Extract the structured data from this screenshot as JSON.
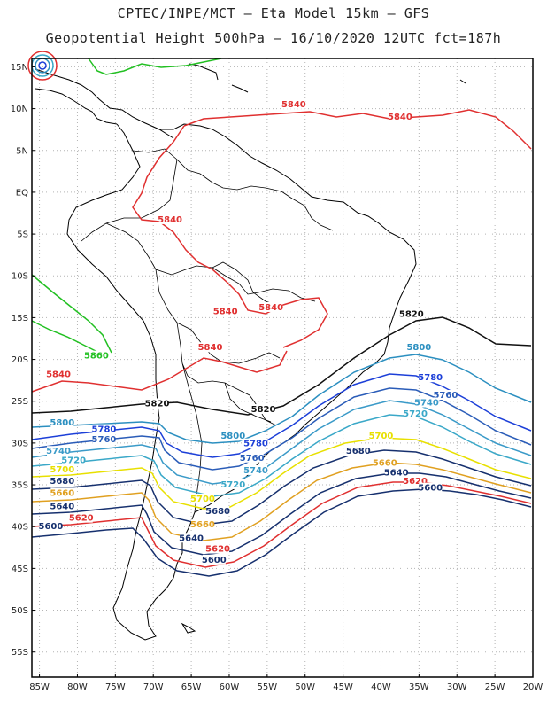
{
  "header": {
    "line1": "CPTEC/INPE/MCT –  Eta Model 15km – GFS",
    "line2": "Geopotential Height 500hPa – 16/10/2020 12UTC fct=187h"
  },
  "map": {
    "extent": {
      "lon": [
        -86,
        -20
      ],
      "lat": [
        -58,
        16
      ]
    },
    "lat_ticks": [
      "15N",
      "10N",
      "5N",
      "EQ",
      "5S",
      "10S",
      "15S",
      "20S",
      "25S",
      "30S",
      "35S",
      "40S",
      "45S",
      "50S",
      "55S"
    ],
    "lon_ticks": [
      "85W",
      "80W",
      "75W",
      "70W",
      "65W",
      "60W",
      "55W",
      "50W",
      "45W",
      "40W",
      "35W",
      "30W",
      "25W",
      "20W"
    ],
    "contour_labels": [
      {
        "text": "5840",
        "color": "#e03030",
        "lon": -51.5,
        "lat": 10.3
      },
      {
        "text": "5840",
        "color": "#e03030",
        "lon": -37.5,
        "lat": 8.8
      },
      {
        "text": "5840",
        "color": "#e03030",
        "lon": -67.8,
        "lat": -3.5
      },
      {
        "text": "5840",
        "color": "#e03030",
        "lon": -60.5,
        "lat": -14.5
      },
      {
        "text": "5840",
        "color": "#e03030",
        "lon": -54.5,
        "lat": -14.0
      },
      {
        "text": "5840",
        "color": "#e03030",
        "lon": -62.5,
        "lat": -18.8
      },
      {
        "text": "5840",
        "color": "#e03030",
        "lon": -82.5,
        "lat": -22.0
      },
      {
        "text": "5860",
        "color": "#22c022",
        "lon": -77.5,
        "lat": -19.8
      },
      {
        "text": "5820",
        "color": "#111111",
        "lon": -69.5,
        "lat": -25.5
      },
      {
        "text": "5820",
        "color": "#111111",
        "lon": -55.5,
        "lat": -26.2
      },
      {
        "text": "5820",
        "color": "#111111",
        "lon": -36.0,
        "lat": -14.8
      },
      {
        "text": "5800",
        "color": "#2b8fc0",
        "lon": -82.0,
        "lat": -27.8
      },
      {
        "text": "5800",
        "color": "#2b8fc0",
        "lon": -59.5,
        "lat": -29.4
      },
      {
        "text": "5800",
        "color": "#2b8fc0",
        "lon": -35.0,
        "lat": -18.8
      },
      {
        "text": "5780",
        "color": "#1c3fd8",
        "lon": -76.5,
        "lat": -28.6
      },
      {
        "text": "5780",
        "color": "#1c3fd8",
        "lon": -56.5,
        "lat": -30.3
      },
      {
        "text": "5780",
        "color": "#1c3fd8",
        "lon": -33.5,
        "lat": -22.4
      },
      {
        "text": "5760",
        "color": "#2a5cb8",
        "lon": -76.5,
        "lat": -29.8
      },
      {
        "text": "5760",
        "color": "#2a5cb8",
        "lon": -57.0,
        "lat": -32.0
      },
      {
        "text": "5760",
        "color": "#2a5cb8",
        "lon": -31.5,
        "lat": -24.5
      },
      {
        "text": "5740",
        "color": "#3a9ac8",
        "lon": -82.5,
        "lat": -31.2
      },
      {
        "text": "5740",
        "color": "#3a9ac8",
        "lon": -56.5,
        "lat": -33.5
      },
      {
        "text": "5740",
        "color": "#3a9ac8",
        "lon": -34.0,
        "lat": -25.4
      },
      {
        "text": "5720",
        "color": "#3aa8c8",
        "lon": -80.5,
        "lat": -32.3
      },
      {
        "text": "5720",
        "color": "#3aa8c8",
        "lon": -59.5,
        "lat": -35.2
      },
      {
        "text": "5720",
        "color": "#3aa8c8",
        "lon": -35.5,
        "lat": -26.7
      },
      {
        "text": "5700",
        "color": "#e8e000",
        "lon": -82.0,
        "lat": -33.4
      },
      {
        "text": "5700",
        "color": "#e8e000",
        "lon": -63.5,
        "lat": -36.9
      },
      {
        "text": "5700",
        "color": "#e8e000",
        "lon": -40.0,
        "lat": -29.4
      },
      {
        "text": "5680",
        "color": "#16306e",
        "lon": -82.0,
        "lat": -34.8
      },
      {
        "text": "5680",
        "color": "#16306e",
        "lon": -61.5,
        "lat": -38.4
      },
      {
        "text": "5680",
        "color": "#16306e",
        "lon": -43.0,
        "lat": -31.2
      },
      {
        "text": "5660",
        "color": "#e0a020",
        "lon": -82.0,
        "lat": -36.2
      },
      {
        "text": "5660",
        "color": "#e0a020",
        "lon": -63.5,
        "lat": -40.0
      },
      {
        "text": "5660",
        "color": "#e0a020",
        "lon": -39.5,
        "lat": -32.6
      },
      {
        "text": "5640",
        "color": "#16306e",
        "lon": -82.0,
        "lat": -37.8
      },
      {
        "text": "5640",
        "color": "#16306e",
        "lon": -65.0,
        "lat": -41.6
      },
      {
        "text": "5640",
        "color": "#16306e",
        "lon": -38.0,
        "lat": -33.8
      },
      {
        "text": "5620",
        "color": "#e03030",
        "lon": -79.5,
        "lat": -39.2
      },
      {
        "text": "5620",
        "color": "#e03030",
        "lon": -61.5,
        "lat": -42.9
      },
      {
        "text": "5620",
        "color": "#e03030",
        "lon": -35.5,
        "lat": -34.8
      },
      {
        "text": "5600",
        "color": "#16306e",
        "lon": -83.5,
        "lat": -40.2
      },
      {
        "text": "5600",
        "color": "#16306e",
        "lon": -62.0,
        "lat": -44.2
      },
      {
        "text": "5600",
        "color": "#16306e",
        "lon": -33.5,
        "lat": -35.6
      }
    ],
    "colors": {
      "frame": "#000000",
      "grid": "#b4b4b4",
      "coast": "#000000"
    }
  }
}
